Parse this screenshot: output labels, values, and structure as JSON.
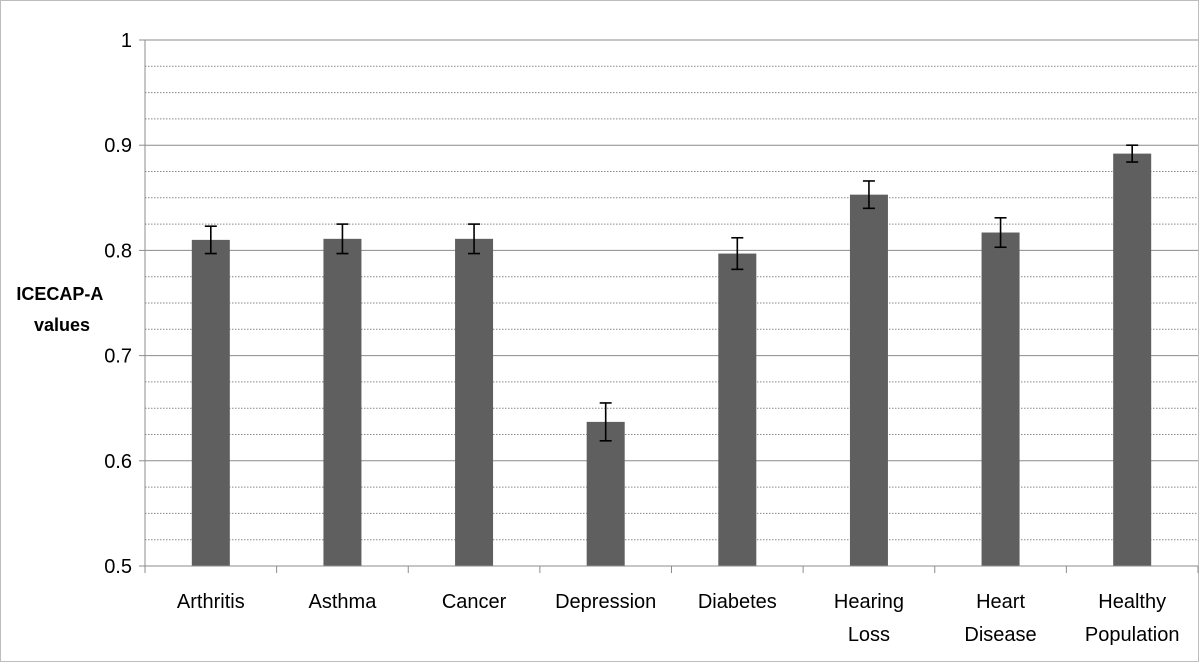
{
  "chart_data": {
    "type": "bar",
    "title": "",
    "xlabel": "",
    "ylabel": "ICECAP-A values",
    "ylabel_lines": [
      "ICECAP-A",
      "values"
    ],
    "ylim": [
      0.5,
      1
    ],
    "yticks": [
      "0.5",
      "0.6",
      "0.7",
      "0.8",
      "0.9",
      "1"
    ],
    "grid": {
      "major": true,
      "minor": true,
      "minor_step": 0.025
    },
    "legend": "none",
    "bar_color": "#5f5f5f",
    "categories": [
      [
        "Arthritis"
      ],
      [
        "Asthma"
      ],
      [
        "Cancer"
      ],
      [
        "Depression"
      ],
      [
        "Diabetes"
      ],
      [
        "Hearing",
        "Loss"
      ],
      [
        "Heart",
        "Disease"
      ],
      [
        "Healthy",
        "Population"
      ]
    ],
    "values": [
      0.81,
      0.811,
      0.811,
      0.637,
      0.797,
      0.853,
      0.817,
      0.892
    ],
    "error": [
      0.013,
      0.014,
      0.014,
      0.018,
      0.015,
      0.013,
      0.014,
      0.008
    ]
  }
}
